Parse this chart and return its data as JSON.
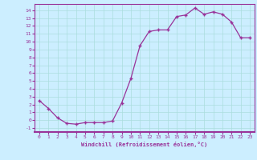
{
  "x": [
    0,
    1,
    2,
    3,
    4,
    5,
    6,
    7,
    8,
    9,
    10,
    11,
    12,
    13,
    14,
    15,
    16,
    17,
    18,
    19,
    20,
    21,
    22,
    23
  ],
  "y": [
    2.5,
    1.5,
    0.3,
    -0.4,
    -0.5,
    -0.3,
    -0.3,
    -0.3,
    -0.1,
    2.2,
    5.3,
    9.5,
    11.3,
    11.5,
    11.5,
    13.2,
    13.4,
    14.3,
    13.5,
    13.8,
    13.5,
    12.5,
    10.5,
    10.5
  ],
  "line_color": "#993399",
  "marker": "+",
  "bg_color": "#cceeff",
  "grid_color": "#aadddd",
  "ylabel_values": [
    -1,
    0,
    1,
    2,
    3,
    4,
    5,
    6,
    7,
    8,
    9,
    10,
    11,
    12,
    13,
    14
  ],
  "xlabel": "Windchill (Refroidissement éolien,°C)",
  "ylim": [
    -1.5,
    14.8
  ],
  "xlim": [
    -0.5,
    23.5
  ]
}
